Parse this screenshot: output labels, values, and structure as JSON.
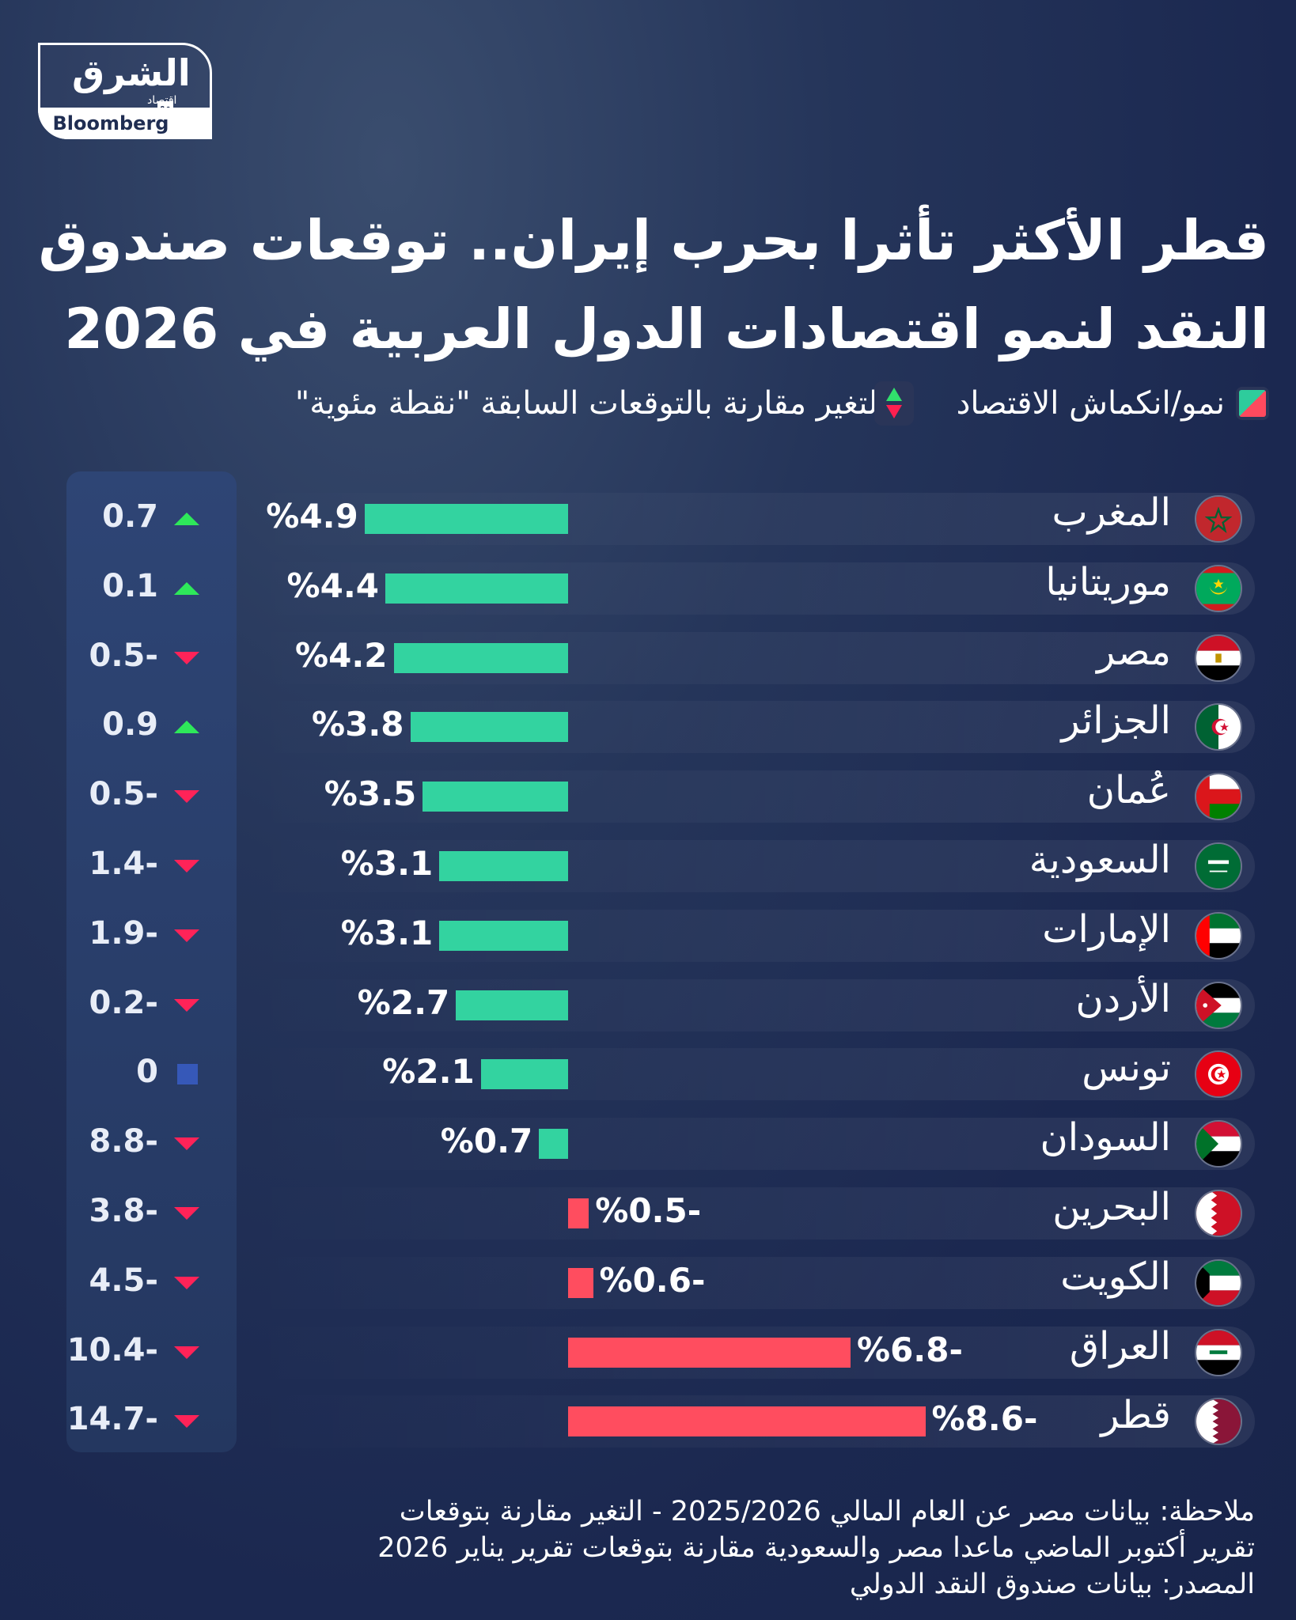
{
  "logo": {
    "brand_ar": "الشرق",
    "sub_ar": "اقتصاد",
    "with_ar": "مع",
    "partner": "Bloomberg"
  },
  "title": "قطر الأكثر تأثرا بحرب إيران.. توقعات صندوق النقد لنمو اقتصادات الدول العربية في 2026",
  "legend": {
    "growth_label": "نمو/انكماش الاقتصاد",
    "change_label": "التغير مقارنة بالتوقعات السابقة \"نقطة مئوية\""
  },
  "colors": {
    "positive": "#33d3a0",
    "negative": "#ff4d5f",
    "up": "#2ee85a",
    "down": "#ff2358",
    "flat": "#3658b8"
  },
  "chart_data": {
    "type": "bar",
    "orientation": "horizontal",
    "title": "قطر الأكثر تأثرا بحرب إيران.. توقعات صندوق النقد لنمو اقتصادات الدول العربية في 2026",
    "categories": [
      "المغرب",
      "موريتانيا",
      "مصر",
      "الجزائر",
      "عُمان",
      "السعودية",
      "الإمارات",
      "الأردن",
      "تونس",
      "السودان",
      "البحرين",
      "الكويت",
      "العراق",
      "قطر"
    ],
    "series": [
      {
        "name": "نمو/انكماش الاقتصاد",
        "unit": "%",
        "values": [
          4.9,
          4.4,
          4.2,
          3.8,
          3.5,
          3.1,
          3.1,
          2.7,
          2.1,
          0.7,
          -0.5,
          -0.6,
          -6.8,
          -8.6
        ],
        "labels": [
          "%4.9",
          "%4.4",
          "%4.2",
          "%3.8",
          "%3.5",
          "%3.1",
          "%3.1",
          "%2.7",
          "%2.1",
          "%0.7",
          "%0.5-",
          "%0.6-",
          "%6.8-",
          "%8.6-"
        ]
      },
      {
        "name": "التغير مقارنة بالتوقعات السابقة",
        "values": [
          0.7,
          0.1,
          -0.5,
          0.9,
          -0.5,
          -1.4,
          -1.9,
          -0.2,
          0,
          -8.8,
          -3.8,
          -4.5,
          -10.4,
          -14.7
        ],
        "labels": [
          "0.7",
          "0.1",
          "0.5-",
          "0.9",
          "0.5-",
          "1.4-",
          "1.9-",
          "0.2-",
          "0",
          "8.8-",
          "3.8-",
          "4.5-",
          "10.4-",
          "14.7-"
        ]
      }
    ],
    "flags": [
      "morocco",
      "mauritania",
      "egypt",
      "algeria",
      "oman",
      "saudi",
      "uae",
      "jordan",
      "tunisia",
      "sudan",
      "bahrain",
      "kuwait",
      "iraq",
      "qatar"
    ]
  },
  "note": {
    "line1": "ملاحظة: بيانات مصر عن العام المالي 2025/2026 - التغير مقارنة بتوقعات",
    "line2": "تقرير أكتوبر الماضي ماعدا مصر والسعودية مقارنة بتوقعات تقرير يناير 2026",
    "line3": "المصدر: بيانات صندوق النقد الدولي"
  }
}
